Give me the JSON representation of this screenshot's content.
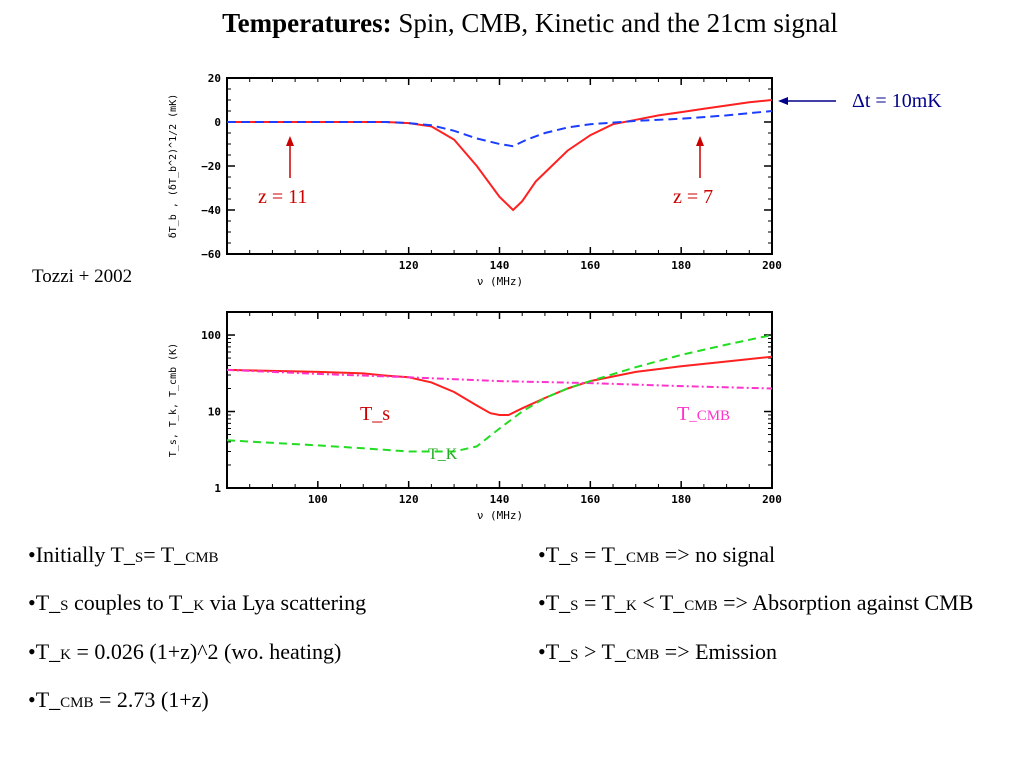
{
  "title": {
    "bold": "Temperatures:",
    "rest": " Spin, CMB, Kinetic and the 21cm signal"
  },
  "citation": "Tozzi + 2002",
  "colors": {
    "ts": "#ff2020",
    "tcmb": "#ff33cc",
    "tk": "#22dd22",
    "dtb": "#1a3dff",
    "annotation_red": "#cc0000",
    "annotation_blue": "#00008b"
  },
  "chart_data": [
    {
      "type": "line",
      "xlabel": "ν (MHz)",
      "ylabel": "δT_b , (δT_b^2)^1/2 (mK)",
      "xlim": [
        80,
        200
      ],
      "ylim": [
        -60,
        20
      ],
      "xticks": [
        "120",
        "140",
        "160",
        "180",
        "200"
      ],
      "yticks": [
        "20",
        "0",
        "−20",
        "−40",
        "−60"
      ],
      "series": [
        {
          "style": "solid red",
          "x": [
            80,
            100,
            115,
            120,
            125,
            130,
            135,
            140,
            143,
            145,
            148,
            150,
            155,
            160,
            165,
            170,
            175,
            180,
            185,
            190,
            195,
            200
          ],
          "y": [
            0,
            0,
            0,
            -0.5,
            -2,
            -8,
            -20,
            -34,
            -40,
            -36,
            -27,
            -23,
            -13,
            -6,
            -1,
            1,
            3,
            4.5,
            6,
            7.5,
            9,
            10
          ]
        },
        {
          "style": "dashed blue",
          "x": [
            80,
            100,
            115,
            120,
            125,
            130,
            135,
            140,
            143,
            146,
            150,
            155,
            160,
            170,
            180,
            190,
            200
          ],
          "y": [
            0,
            0,
            0,
            -0.5,
            -1.5,
            -4,
            -7.5,
            -10,
            -11,
            -8,
            -5,
            -2.5,
            -1,
            0.5,
            1.5,
            3,
            5
          ]
        }
      ],
      "annotations": [
        {
          "text": "z = 11",
          "x": 110,
          "y": -38,
          "arrow_to_y": -6
        },
        {
          "text": "z = 7",
          "x": 182,
          "y": -38,
          "arrow_to_y": -6
        },
        {
          "text": "Δt = 10mK",
          "arrow_to_y": 10
        }
      ]
    },
    {
      "type": "line",
      "xlabel": "ν (MHz)",
      "ylabel": "T_s, T_k, T_cmb (K)",
      "yscale": "log",
      "xlim": [
        80,
        200
      ],
      "ylim": [
        1,
        200
      ],
      "xticks": [
        "100",
        "120",
        "140",
        "160",
        "180",
        "200"
      ],
      "yticks": [
        "100",
        "10",
        "1"
      ],
      "series": [
        {
          "name": "T_s",
          "style": "solid red",
          "x": [
            80,
            90,
            100,
            110,
            115,
            120,
            125,
            130,
            135,
            138,
            140,
            142,
            145,
            150,
            155,
            160,
            170,
            180,
            190,
            200
          ],
          "y": [
            35,
            34,
            33,
            31.5,
            29.5,
            28,
            24,
            18,
            12,
            9.5,
            9,
            9,
            11,
            15,
            20,
            25,
            33,
            39,
            45,
            52
          ]
        },
        {
          "name": "T_CMB",
          "style": "dash-dot magenta",
          "x": [
            80,
            100,
            120,
            140,
            160,
            180,
            200
          ],
          "y": [
            35,
            31,
            28,
            25,
            23.5,
            21.5,
            20
          ]
        },
        {
          "name": "T_K",
          "style": "dashed green",
          "x": [
            80,
            100,
            110,
            120,
            125,
            130,
            135,
            140,
            145,
            150,
            155,
            160,
            170,
            180,
            190,
            200
          ],
          "y": [
            4.2,
            3.6,
            3.3,
            3,
            3,
            3,
            3.5,
            6,
            10,
            15,
            20,
            25,
            38,
            55,
            75,
            100
          ]
        }
      ]
    }
  ],
  "series_labels": {
    "ts": "T_s",
    "tcmb_pre": "T",
    "tcmb_sub": "_CMB",
    "tk": "T_K"
  },
  "left_bullets": [
    {
      "a": "•Initially T_",
      "b": "S",
      "c": "= T_",
      "d": "CMB",
      "e": ""
    },
    {
      "a": "•T_",
      "b": "S",
      "c": " couples to T_",
      "d": "K",
      "e": " via Lya scattering"
    },
    {
      "a": "•T_",
      "b": "K",
      "c": "  = 0.026 (1+z)^2  (wo. heating)",
      "d": "",
      "e": ""
    },
    {
      "a": "•T_",
      "b": "CMB",
      "c": " =  2.73 (1+z)",
      "d": "",
      "e": ""
    }
  ],
  "right_bullets": [
    {
      "a": "•T_",
      "b": "S",
      "c": " = T_",
      "d": "CMB",
      "e": " => no signal",
      "f": "",
      "g": ""
    },
    {
      "a": "•T_",
      "b": "S",
      "c": " = T_",
      "d": "K",
      "e": " < T_",
      "f": "CMB",
      "g": " => Absorption against CMB"
    },
    {
      "a": "•T_",
      "b": "S",
      "c": " > T_",
      "d": "CMB",
      "e": " => Emission",
      "f": "",
      "g": ""
    }
  ]
}
